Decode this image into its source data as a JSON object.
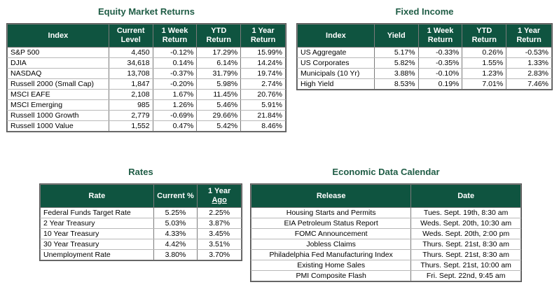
{
  "equity": {
    "title": "Equity Market Returns",
    "headers": [
      "Index",
      "Current Level",
      "1 Week Return",
      "YTD Return",
      "1 Year Return"
    ],
    "rows": [
      [
        "S&P 500",
        "4,450",
        "-0.12%",
        "17.29%",
        "15.99%"
      ],
      [
        "DJIA",
        "34,618",
        "0.14%",
        "6.14%",
        "14.24%"
      ],
      [
        "NASDAQ",
        "13,708",
        "-0.37%",
        "31.79%",
        "19.74%"
      ],
      [
        "Russell 2000 (Small Cap)",
        "1,847",
        "-0.20%",
        "5.98%",
        "2.74%"
      ],
      [
        "MSCI EAFE",
        "2,108",
        "1.67%",
        "11.45%",
        "20.76%"
      ],
      [
        "MSCI Emerging",
        "985",
        "1.26%",
        "5.46%",
        "5.91%"
      ],
      [
        "Russell 1000 Growth",
        "2,779",
        "-0.69%",
        "29.66%",
        "21.84%"
      ],
      [
        "Russell 1000 Value",
        "1,552",
        "0.47%",
        "5.42%",
        "8.46%"
      ]
    ]
  },
  "fixed": {
    "title": "Fixed Income",
    "headers": [
      "Index",
      "Yield",
      "1 Week Return",
      "YTD Return",
      "1 Year Return"
    ],
    "rows": [
      [
        "US Aggregate",
        "5.17%",
        "-0.33%",
        "0.26%",
        "-0.53%"
      ],
      [
        "US Corporates",
        "5.82%",
        "-0.35%",
        "1.55%",
        "1.33%"
      ],
      [
        "Municipals (10 Yr)",
        "3.88%",
        "-0.10%",
        "1.23%",
        "2.83%"
      ],
      [
        "High Yield",
        "8.53%",
        "0.19%",
        "7.01%",
        "7.46%"
      ]
    ]
  },
  "rates": {
    "title": "Rates",
    "headers": [
      "Rate",
      "Current %",
      "1 Year",
      "Ago"
    ],
    "rows": [
      [
        "Federal Funds Target Rate",
        "5.25%",
        "2.25%"
      ],
      [
        "2 Year Treasury",
        "5.03%",
        "3.87%"
      ],
      [
        "10 Year Treasury",
        "4.33%",
        "3.45%"
      ],
      [
        "30 Year Treasury",
        "4.42%",
        "3.51%"
      ],
      [
        "Unemployment Rate",
        "3.80%",
        "3.70%"
      ]
    ]
  },
  "calendar": {
    "title": "Economic Data Calendar",
    "headers": [
      "Release",
      "Date"
    ],
    "rows": [
      [
        "Housing Starts and Permits",
        "Tues. Sept. 19th, 8:30 am"
      ],
      [
        "EIA Petroleum Status Report",
        "Weds. Sept. 20th, 10:30 am"
      ],
      [
        "FOMC Announcement",
        "Weds. Sept. 20th, 2:00 pm"
      ],
      [
        "Jobless Claims",
        "Thurs. Sept. 21st, 8:30 am"
      ],
      [
        "Philadelphia Fed Manufacturing Index",
        "Thurs. Sept. 21st, 8:30 am"
      ],
      [
        "Existing Home Sales",
        "Thurs. Sept. 21st, 10:00 am"
      ],
      [
        "PMI Composite Flash",
        "Fri. Sept. 22nd, 9:45 am"
      ]
    ]
  }
}
